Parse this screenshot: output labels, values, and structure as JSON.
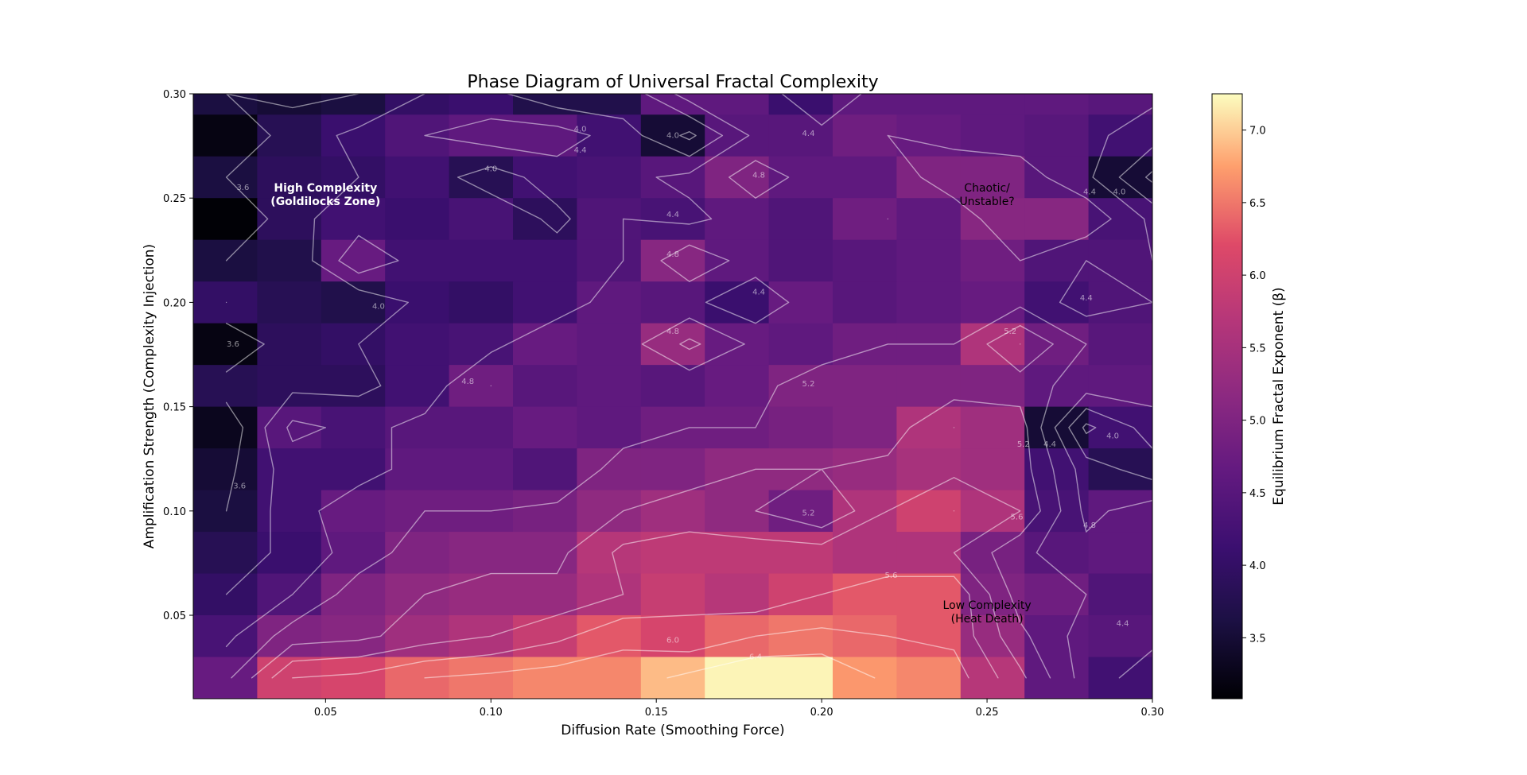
{
  "chart_data": {
    "type": "heatmap",
    "title": "Phase Diagram of Universal Fractal Complexity",
    "xlabel": "Diffusion Rate (Smoothing Force)",
    "ylabel": "Amplification Strength (Complexity Injection)",
    "colorbar_label": "Equilibrium Fractal Exponent (β)",
    "colormap": "magma",
    "xlim": [
      0.01,
      0.3
    ],
    "ylim": [
      0.01,
      0.3
    ],
    "x_ticks": [
      "0.05",
      "0.10",
      "0.15",
      "0.20",
      "0.25",
      "0.30"
    ],
    "y_ticks": [
      "0.05",
      "0.10",
      "0.15",
      "0.20",
      "0.25",
      "0.30"
    ],
    "colorbar_range": [
      3.08,
      7.25
    ],
    "colorbar_ticks": [
      "3.5",
      "4.0",
      "4.5",
      "5.0",
      "5.5",
      "6.0",
      "6.5",
      "7.0"
    ],
    "x_centers": [
      0.02,
      0.04,
      0.06,
      0.08,
      0.1,
      0.12,
      0.14,
      0.16,
      0.18,
      0.2,
      0.22,
      0.24,
      0.26,
      0.28,
      0.3
    ],
    "y_centers": [
      0.3,
      0.28,
      0.26,
      0.24,
      0.22,
      0.2,
      0.18,
      0.16,
      0.14,
      0.12,
      0.1,
      0.08,
      0.06,
      0.04,
      0.02
    ],
    "values": [
      [
        3.6,
        3.5,
        3.6,
        4.0,
        4.1,
        3.7,
        3.7,
        4.6,
        4.6,
        4.1,
        4.6,
        4.6,
        4.6,
        4.6,
        4.5
      ],
      [
        3.2,
        3.8,
        4.1,
        4.4,
        4.6,
        4.6,
        4.2,
        3.5,
        4.5,
        4.5,
        4.8,
        4.7,
        4.6,
        4.5,
        4.2
      ],
      [
        3.6,
        3.9,
        4.0,
        4.2,
        3.8,
        4.2,
        4.3,
        4.5,
        5.0,
        4.6,
        4.6,
        5.0,
        5.0,
        4.5,
        3.5
      ],
      [
        3.1,
        3.9,
        4.2,
        4.1,
        4.3,
        3.9,
        4.4,
        4.3,
        4.6,
        4.4,
        4.8,
        4.6,
        5.1,
        5.1,
        4.3
      ],
      [
        3.6,
        3.7,
        4.7,
        4.2,
        4.2,
        4.2,
        4.4,
        5.1,
        4.6,
        4.4,
        4.5,
        4.6,
        4.8,
        4.4,
        4.4
      ],
      [
        4.0,
        3.8,
        3.7,
        4.1,
        4.0,
        4.2,
        4.6,
        4.5,
        4.1,
        4.7,
        4.5,
        4.6,
        4.7,
        4.2,
        4.4
      ],
      [
        3.2,
        3.9,
        4.0,
        4.2,
        4.3,
        4.7,
        4.6,
        5.3,
        4.7,
        4.6,
        4.8,
        4.8,
        5.6,
        4.8,
        4.5
      ],
      [
        3.8,
        3.9,
        3.9,
        4.2,
        4.8,
        4.5,
        4.6,
        4.5,
        4.7,
        5.0,
        5.0,
        5.0,
        5.0,
        4.6,
        4.6
      ],
      [
        3.3,
        4.5,
        4.3,
        4.5,
        4.5,
        4.7,
        4.6,
        4.8,
        4.8,
        4.9,
        5.0,
        5.6,
        5.4,
        3.5,
        4.2
      ],
      [
        3.5,
        4.2,
        4.2,
        4.6,
        4.6,
        4.4,
        5.0,
        5.0,
        5.2,
        5.2,
        5.3,
        5.5,
        5.4,
        4.2,
        3.8
      ],
      [
        3.6,
        4.2,
        4.7,
        4.8,
        4.8,
        4.9,
        5.2,
        5.4,
        5.2,
        4.8,
        5.6,
        6.0,
        5.6,
        4.3,
        4.6
      ],
      [
        3.8,
        4.1,
        4.6,
        5.0,
        5.1,
        5.1,
        5.7,
        5.8,
        5.8,
        5.8,
        5.6,
        5.6,
        4.9,
        4.5,
        4.6
      ],
      [
        4.0,
        4.4,
        5.0,
        5.2,
        5.3,
        5.3,
        5.6,
        5.9,
        5.7,
        6.0,
        6.3,
        6.3,
        5.0,
        4.8,
        4.4
      ],
      [
        4.3,
        5.0,
        5.1,
        5.4,
        5.6,
        5.9,
        6.3,
        6.1,
        6.4,
        6.5,
        6.4,
        6.3,
        5.3,
        4.6,
        4.5
      ],
      [
        4.7,
        6.0,
        6.1,
        6.4,
        6.5,
        6.6,
        6.6,
        6.9,
        7.2,
        7.2,
        6.7,
        6.6,
        5.7,
        4.6,
        4.2
      ]
    ],
    "contour_labels": [
      {
        "text": "4.0",
        "x": 0.127,
        "y": 0.283
      },
      {
        "text": "4.4",
        "x": 0.127,
        "y": 0.273
      },
      {
        "text": "4.0",
        "x": 0.155,
        "y": 0.28
      },
      {
        "text": "4.4",
        "x": 0.196,
        "y": 0.281
      },
      {
        "text": "4.0",
        "x": 0.1,
        "y": 0.264
      },
      {
        "text": "4.8",
        "x": 0.181,
        "y": 0.261
      },
      {
        "text": "3.6",
        "x": 0.025,
        "y": 0.255
      },
      {
        "text": "4.4",
        "x": 0.155,
        "y": 0.242
      },
      {
        "text": "4.8",
        "x": 0.155,
        "y": 0.223
      },
      {
        "text": "4.4",
        "x": 0.181,
        "y": 0.205
      },
      {
        "text": "4.0",
        "x": 0.066,
        "y": 0.198
      },
      {
        "text": "4.8",
        "x": 0.155,
        "y": 0.186
      },
      {
        "text": "3.6",
        "x": 0.022,
        "y": 0.18
      },
      {
        "text": "5.2",
        "x": 0.257,
        "y": 0.186
      },
      {
        "text": "4.4",
        "x": 0.28,
        "y": 0.202
      },
      {
        "text": "4.8",
        "x": 0.093,
        "y": 0.162
      },
      {
        "text": "5.2",
        "x": 0.196,
        "y": 0.161
      },
      {
        "text": "4.0",
        "x": 0.288,
        "y": 0.136
      },
      {
        "text": "4.4",
        "x": 0.269,
        "y": 0.132
      },
      {
        "text": "5.2",
        "x": 0.261,
        "y": 0.132
      },
      {
        "text": "3.6",
        "x": 0.024,
        "y": 0.112
      },
      {
        "text": "5.2",
        "x": 0.196,
        "y": 0.099
      },
      {
        "text": "5.6",
        "x": 0.259,
        "y": 0.097
      },
      {
        "text": "4.8",
        "x": 0.281,
        "y": 0.093
      },
      {
        "text": "5.6",
        "x": 0.221,
        "y": 0.069
      },
      {
        "text": "4.4",
        "x": 0.291,
        "y": 0.046
      },
      {
        "text": "6.0",
        "x": 0.155,
        "y": 0.038
      },
      {
        "text": "6.4",
        "x": 0.18,
        "y": 0.03
      },
      {
        "text": "4.4",
        "x": 0.281,
        "y": 0.253
      },
      {
        "text": "4.0",
        "x": 0.29,
        "y": 0.253
      }
    ],
    "annotations": [
      {
        "lines": [
          "High Complexity",
          "(Goldilocks Zone)"
        ],
        "x": 0.05,
        "y": 0.25,
        "color": "#ffffff",
        "bold": true
      },
      {
        "lines": [
          "Chaotic/",
          "Unstable?"
        ],
        "x": 0.25,
        "y": 0.25,
        "color": "#000000",
        "bold": false
      },
      {
        "lines": [
          "Low Complexity",
          "(Heat Death)"
        ],
        "x": 0.25,
        "y": 0.05,
        "color": "#000000",
        "bold": false
      }
    ]
  }
}
